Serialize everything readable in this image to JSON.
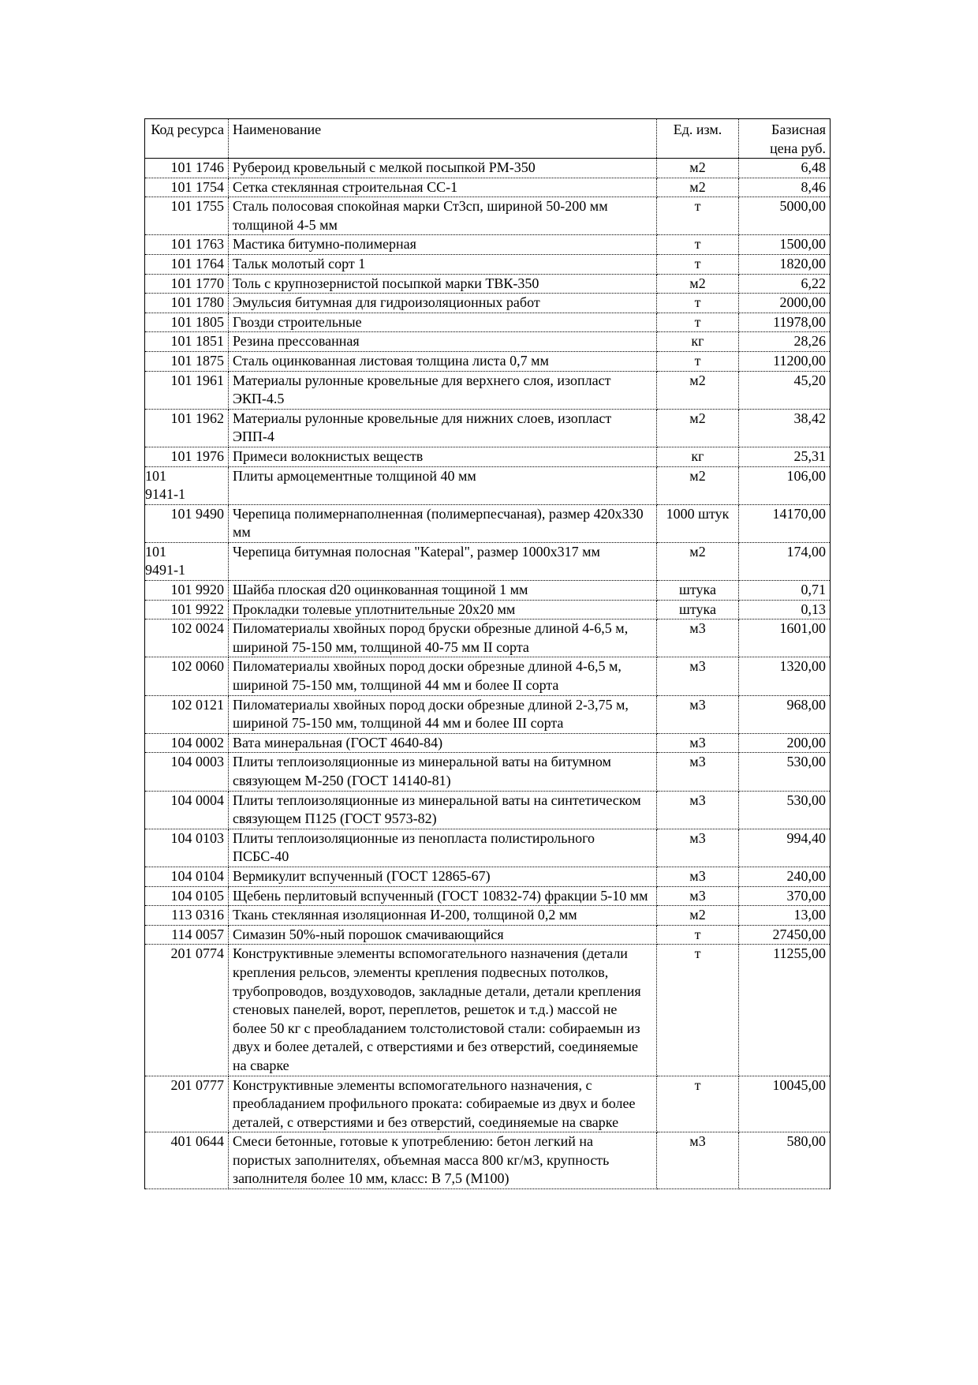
{
  "table": {
    "headers": [
      "Код ресурса",
      "Наименование",
      "Ед. изм.",
      "Базисная цена руб."
    ],
    "rows": [
      [
        "101 1746",
        "Рубероид кровельный с мелкой посыпкой РМ-350",
        "м2",
        "6,48"
      ],
      [
        "101 1754",
        "Сетка стеклянная строительная СС-1",
        "м2",
        "8,46"
      ],
      [
        "101 1755",
        "Сталь полосовая спокойная марки Ст3сп, шириной 50-200 мм толщиной 4-5 мм",
        "т",
        "5000,00"
      ],
      [
        "101 1763",
        "Мастика битумно-полимерная",
        "т",
        "1500,00"
      ],
      [
        "101 1764",
        "Тальк молотый сорт 1",
        "т",
        "1820,00"
      ],
      [
        "101 1770",
        "Толь с крупнозернистой посыпкой марки ТВК-350",
        "м2",
        "6,22"
      ],
      [
        "101 1780",
        "Эмульсия битумная для гидроизоляционных работ",
        "т",
        "2000,00"
      ],
      [
        "101 1805",
        "Гвозди строительные",
        "т",
        "11978,00"
      ],
      [
        "101 1851",
        "Резина прессованная",
        "кг",
        "28,26"
      ],
      [
        "101 1875",
        "Сталь оцинкованная листовая толщина листа 0,7 мм",
        "т",
        "11200,00"
      ],
      [
        "101 1961",
        "Материалы рулонные кровельные для верхнего слоя, изопласт ЭКП-4.5",
        "м2",
        "45,20"
      ],
      [
        "101 1962",
        "Материалы рулонные кровельные для нижних слоев, изопласт ЭПП-4",
        "м2",
        "38,42"
      ],
      [
        "101 1976",
        "Примеси волокнистых веществ",
        "кг",
        "25,31"
      ],
      [
        "101 9141-1",
        "Плиты армоцементные толщиной 40 мм",
        "м2",
        "106,00"
      ],
      [
        "101 9490",
        "Черепица полимернаполненная (полимерпесчаная), размер 420х330 мм",
        "1000 штук",
        "14170,00"
      ],
      [
        "101 9491-1",
        "Черепица битумная полосная \"Katepal\", размер 1000х317 мм",
        "м2",
        "174,00"
      ],
      [
        "101 9920",
        "Шайба плоская d20 оцинкованная тощиной 1 мм",
        "штука",
        "0,71"
      ],
      [
        "101 9922",
        "Прокладки толевые уплотнительные 20х20 мм",
        "штука",
        "0,13"
      ],
      [
        "102 0024",
        "Пиломатериалы хвойных пород бруски обрезные длиной 4-6,5 м, шириной 75-150 мм, толщиной 40-75 мм II сорта",
        "м3",
        "1601,00"
      ],
      [
        "102 0060",
        "Пиломатериалы хвойных пород доски обрезные длиной 4-6,5 м, шириной 75-150 мм, толщиной 44 мм и более II сорта",
        "м3",
        "1320,00"
      ],
      [
        "102 0121",
        "Пиломатериалы хвойных пород доски обрезные длиной 2-3,75 м, шириной 75-150 мм, толщиной 44 мм и более III сорта",
        "м3",
        "968,00"
      ],
      [
        "104 0002",
        "Вата минеральная (ГОСТ 4640-84)",
        "м3",
        "200,00"
      ],
      [
        "104 0003",
        "Плиты теплоизоляционные из минеральной ваты на битумном связующем М-250 (ГОСТ 14140-81)",
        "м3",
        "530,00"
      ],
      [
        "104 0004",
        "Плиты теплоизоляционные из минеральной ваты на синтетическом связующем П125 (ГОСТ 9573-82)",
        "м3",
        "530,00"
      ],
      [
        "104 0103",
        "Плиты теплоизоляционные из пенопласта полистирольного ПСБС-40",
        "м3",
        "994,40"
      ],
      [
        "104 0104",
        "Вермикулит вспученный (ГОСТ 12865-67)",
        "м3",
        "240,00"
      ],
      [
        "104 0105",
        "Щебень перлитовый вспученный (ГОСТ 10832-74) фракции 5-10 мм",
        "м3",
        "370,00"
      ],
      [
        "113 0316",
        "Ткань стеклянная изоляционная И-200, толщиной 0,2 мм",
        "м2",
        "13,00"
      ],
      [
        "114 0057",
        "Симазин 50%-ный порошок смачивающийся",
        "т",
        "27450,00"
      ],
      [
        "201 0774",
        "Конструктивные элементы вспомогательного назначения (детали крепления рельсов, элементы крепления подвесных потолков, трубопроводов, воздуховодов, закладные детали, детали крепления стеновых панелей, ворот, переплетов, решеток и т.д.) массой не более 50 кг с преобладанием толстолистовой стали: собираемын из двух и более деталей, с отверстиями и без отверстий, соединяемые на сварке",
        "т",
        "11255,00"
      ],
      [
        "201 0777",
        "Конструктивные элементы вспомогательного назначения, с преобладанием профильного проката: собираемые из двух и более деталей, с отверстиями и без отверстий, соединяемые на сварке",
        "т",
        "10045,00"
      ],
      [
        "401 0644",
        "Смеси бетонные, готовые к употреблению: бетон легкий на пористых заполнителях, объемная масса 800 кг/м3, крупность заполнителя более 10 мм, класс: В 7,5 (М100)",
        "м3",
        "580,00"
      ]
    ]
  }
}
